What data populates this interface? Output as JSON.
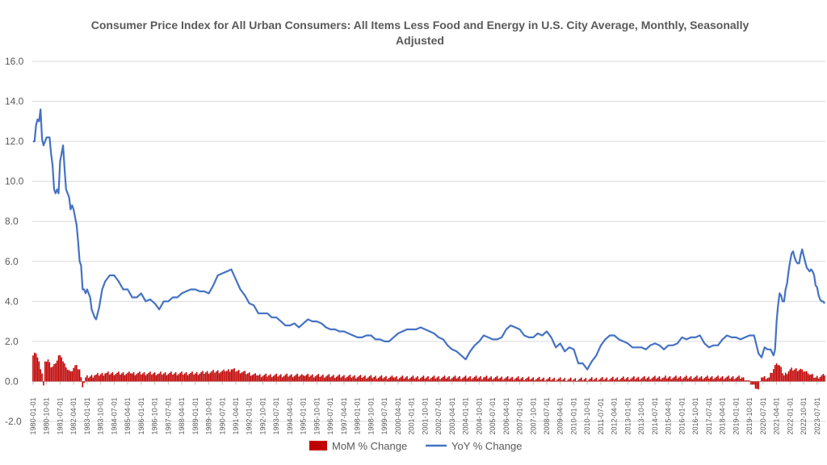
{
  "chart_data": {
    "type": "bar+line",
    "title": "Consumer Price Index for All Urban Consumers: All Items Less Food and Energy in U.S. City Average, Monthly, Seasonally Adjusted",
    "ylim": [
      -2.0,
      16.0
    ],
    "y_ticks": [
      "-2.0",
      "0.0",
      "2.0",
      "4.0",
      "6.0",
      "8.0",
      "10.0",
      "12.0",
      "14.0",
      "16.0"
    ],
    "x_ticks": [
      "1980-01-01",
      "1980-10-01",
      "1981-07-01",
      "1982-04-01",
      "1983-01-01",
      "1983-10-01",
      "1984-07-01",
      "1985-04-01",
      "1986-01-01",
      "1986-10-01",
      "1987-07-01",
      "1988-04-01",
      "1989-01-01",
      "1989-10-01",
      "1990-07-01",
      "1991-04-01",
      "1992-01-01",
      "1992-10-01",
      "1993-07-01",
      "1994-04-01",
      "1995-01-01",
      "1995-10-01",
      "1996-07-01",
      "1997-04-01",
      "1998-01-01",
      "1998-10-01",
      "1999-07-01",
      "2000-04-01",
      "2001-01-01",
      "2001-10-01",
      "2002-07-01",
      "2003-04-01",
      "2004-01-01",
      "2004-10-01",
      "2005-07-01",
      "2006-04-01",
      "2007-01-01",
      "2007-10-01",
      "2008-07-01",
      "2009-04-01",
      "2010-01-01",
      "2010-10-01",
      "2011-07-01",
      "2012-04-01",
      "2013-01-01",
      "2013-10-01",
      "2014-07-01",
      "2015-04-01",
      "2016-01-01",
      "2016-10-01",
      "2017-07-01",
      "2018-04-01",
      "2019-01-01",
      "2019-10-01",
      "2020-07-01",
      "2021-04-01",
      "2022-01-01",
      "2022-10-01",
      "2023-07-01"
    ],
    "x_range": [
      "1980-01-01",
      "2023-12-01"
    ],
    "grid": true,
    "legend_position": "bottom",
    "series": [
      {
        "name": "MoM % Change",
        "type": "bar",
        "color": "#C00000",
        "points": [
          [
            "1980-01",
            1.3
          ],
          [
            "1980-03",
            1.4
          ],
          [
            "1980-05",
            1.0
          ],
          [
            "1980-07",
            0.4
          ],
          [
            "1980-08",
            -0.2
          ],
          [
            "1980-09",
            1.0
          ],
          [
            "1980-11",
            1.1
          ],
          [
            "1981-01",
            0.7
          ],
          [
            "1981-04",
            0.9
          ],
          [
            "1981-06",
            1.3
          ],
          [
            "1981-08",
            1.2
          ],
          [
            "1981-11",
            0.7
          ],
          [
            "1982-02",
            0.5
          ],
          [
            "1982-05",
            0.8
          ],
          [
            "1982-08",
            0.6
          ],
          [
            "1982-10",
            -0.3
          ],
          [
            "1982-12",
            0.2
          ],
          [
            "1983-06",
            0.3
          ],
          [
            "1984-01",
            0.4
          ],
          [
            "1985-06",
            0.4
          ],
          [
            "1987-01",
            0.4
          ],
          [
            "1989-01",
            0.4
          ],
          [
            "1990-03",
            0.5
          ],
          [
            "1990-09",
            0.5
          ],
          [
            "1991-01",
            0.6
          ],
          [
            "1992-06",
            0.3
          ],
          [
            "1995-01",
            0.3
          ],
          [
            "2000-01",
            0.2
          ],
          [
            "2005-01",
            0.2
          ],
          [
            "2010-01",
            0.1
          ],
          [
            "2015-01",
            0.2
          ],
          [
            "2019-06",
            0.2
          ],
          [
            "2020-04",
            -0.4
          ],
          [
            "2020-06",
            0.2
          ],
          [
            "2020-11",
            0.2
          ],
          [
            "2021-04",
            0.9
          ],
          [
            "2021-06",
            0.8
          ],
          [
            "2021-09",
            0.3
          ],
          [
            "2022-01",
            0.6
          ],
          [
            "2022-04",
            0.6
          ],
          [
            "2022-09",
            0.6
          ],
          [
            "2023-01",
            0.4
          ],
          [
            "2023-06",
            0.2
          ],
          [
            "2023-12",
            0.3
          ]
        ]
      },
      {
        "name": "YoY % Change",
        "type": "line",
        "color": "#4472C4",
        "points": [
          [
            "1980-01",
            12.0
          ],
          [
            "1980-02",
            12.0
          ],
          [
            "1980-03",
            12.8
          ],
          [
            "1980-04",
            13.1
          ],
          [
            "1980-05",
            13.0
          ],
          [
            "1980-06",
            13.6
          ],
          [
            "1980-07",
            12.1
          ],
          [
            "1980-08",
            11.8
          ],
          [
            "1980-09",
            12.0
          ],
          [
            "1980-10",
            12.2
          ],
          [
            "1980-11",
            12.2
          ],
          [
            "1980-12",
            12.2
          ],
          [
            "1981-01",
            11.4
          ],
          [
            "1981-02",
            10.8
          ],
          [
            "1981-03",
            9.6
          ],
          [
            "1981-04",
            9.4
          ],
          [
            "1981-05",
            9.6
          ],
          [
            "1981-06",
            9.4
          ],
          [
            "1981-07",
            11.0
          ],
          [
            "1981-08",
            11.4
          ],
          [
            "1981-09",
            11.8
          ],
          [
            "1981-10",
            10.6
          ],
          [
            "1981-11",
            9.6
          ],
          [
            "1981-12",
            9.4
          ],
          [
            "1982-01",
            9.2
          ],
          [
            "1982-02",
            8.6
          ],
          [
            "1982-03",
            8.8
          ],
          [
            "1982-04",
            8.6
          ],
          [
            "1982-05",
            8.2
          ],
          [
            "1982-06",
            7.8
          ],
          [
            "1982-07",
            7.0
          ],
          [
            "1982-08",
            6.0
          ],
          [
            "1982-09",
            5.8
          ],
          [
            "1982-10",
            4.6
          ],
          [
            "1982-11",
            4.6
          ],
          [
            "1982-12",
            4.4
          ],
          [
            "1983-01",
            4.6
          ],
          [
            "1983-03",
            4.2
          ],
          [
            "1983-04",
            3.6
          ],
          [
            "1983-06",
            3.2
          ],
          [
            "1983-07",
            3.1
          ],
          [
            "1983-09",
            3.7
          ],
          [
            "1983-11",
            4.6
          ],
          [
            "1984-01",
            5.0
          ],
          [
            "1984-04",
            5.3
          ],
          [
            "1984-07",
            5.3
          ],
          [
            "1984-10",
            5.0
          ],
          [
            "1985-01",
            4.6
          ],
          [
            "1985-04",
            4.6
          ],
          [
            "1985-07",
            4.2
          ],
          [
            "1985-10",
            4.2
          ],
          [
            "1986-01",
            4.4
          ],
          [
            "1986-04",
            4.0
          ],
          [
            "1986-07",
            4.1
          ],
          [
            "1986-10",
            3.9
          ],
          [
            "1987-01",
            3.6
          ],
          [
            "1987-04",
            4.0
          ],
          [
            "1987-07",
            4.0
          ],
          [
            "1987-10",
            4.2
          ],
          [
            "1988-01",
            4.2
          ],
          [
            "1988-04",
            4.4
          ],
          [
            "1988-07",
            4.5
          ],
          [
            "1988-10",
            4.6
          ],
          [
            "1989-01",
            4.6
          ],
          [
            "1989-04",
            4.5
          ],
          [
            "1989-07",
            4.5
          ],
          [
            "1989-10",
            4.4
          ],
          [
            "1990-01",
            4.8
          ],
          [
            "1990-04",
            5.3
          ],
          [
            "1990-07",
            5.4
          ],
          [
            "1990-10",
            5.5
          ],
          [
            "1991-01",
            5.6
          ],
          [
            "1991-04",
            5.1
          ],
          [
            "1991-07",
            4.6
          ],
          [
            "1991-10",
            4.3
          ],
          [
            "1992-01",
            3.9
          ],
          [
            "1992-04",
            3.8
          ],
          [
            "1992-07",
            3.4
          ],
          [
            "1992-10",
            3.4
          ],
          [
            "1993-01",
            3.4
          ],
          [
            "1993-04",
            3.2
          ],
          [
            "1993-07",
            3.2
          ],
          [
            "1993-10",
            3.0
          ],
          [
            "1994-01",
            2.8
          ],
          [
            "1994-04",
            2.8
          ],
          [
            "1994-07",
            2.9
          ],
          [
            "1994-10",
            2.7
          ],
          [
            "1995-01",
            2.9
          ],
          [
            "1995-04",
            3.1
          ],
          [
            "1995-07",
            3.0
          ],
          [
            "1995-10",
            3.0
          ],
          [
            "1996-01",
            2.9
          ],
          [
            "1996-04",
            2.7
          ],
          [
            "1996-07",
            2.6
          ],
          [
            "1996-10",
            2.6
          ],
          [
            "1997-01",
            2.5
          ],
          [
            "1997-04",
            2.5
          ],
          [
            "1997-07",
            2.4
          ],
          [
            "1997-10",
            2.3
          ],
          [
            "1998-01",
            2.2
          ],
          [
            "1998-04",
            2.2
          ],
          [
            "1998-07",
            2.3
          ],
          [
            "1998-10",
            2.3
          ],
          [
            "1999-01",
            2.1
          ],
          [
            "1999-04",
            2.1
          ],
          [
            "1999-07",
            2.0
          ],
          [
            "1999-10",
            2.0
          ],
          [
            "2000-01",
            2.2
          ],
          [
            "2000-04",
            2.4
          ],
          [
            "2000-07",
            2.5
          ],
          [
            "2000-10",
            2.6
          ],
          [
            "2001-01",
            2.6
          ],
          [
            "2001-04",
            2.6
          ],
          [
            "2001-07",
            2.7
          ],
          [
            "2001-10",
            2.6
          ],
          [
            "2002-01",
            2.5
          ],
          [
            "2002-04",
            2.4
          ],
          [
            "2002-07",
            2.2
          ],
          [
            "2002-10",
            2.1
          ],
          [
            "2003-01",
            1.8
          ],
          [
            "2003-04",
            1.6
          ],
          [
            "2003-07",
            1.5
          ],
          [
            "2003-10",
            1.3
          ],
          [
            "2004-01",
            1.1
          ],
          [
            "2004-04",
            1.5
          ],
          [
            "2004-07",
            1.8
          ],
          [
            "2004-10",
            2.0
          ],
          [
            "2005-01",
            2.3
          ],
          [
            "2005-04",
            2.2
          ],
          [
            "2005-07",
            2.1
          ],
          [
            "2005-10",
            2.1
          ],
          [
            "2006-01",
            2.2
          ],
          [
            "2006-04",
            2.6
          ],
          [
            "2006-07",
            2.8
          ],
          [
            "2006-10",
            2.7
          ],
          [
            "2007-01",
            2.6
          ],
          [
            "2007-04",
            2.3
          ],
          [
            "2007-07",
            2.2
          ],
          [
            "2007-10",
            2.2
          ],
          [
            "2008-01",
            2.4
          ],
          [
            "2008-04",
            2.3
          ],
          [
            "2008-07",
            2.5
          ],
          [
            "2008-10",
            2.2
          ],
          [
            "2009-01",
            1.7
          ],
          [
            "2009-04",
            1.9
          ],
          [
            "2009-07",
            1.5
          ],
          [
            "2009-10",
            1.7
          ],
          [
            "2010-01",
            1.6
          ],
          [
            "2010-04",
            0.9
          ],
          [
            "2010-07",
            0.9
          ],
          [
            "2010-10",
            0.6
          ],
          [
            "2011-01",
            1.0
          ],
          [
            "2011-04",
            1.3
          ],
          [
            "2011-07",
            1.8
          ],
          [
            "2011-10",
            2.1
          ],
          [
            "2012-01",
            2.3
          ],
          [
            "2012-04",
            2.3
          ],
          [
            "2012-07",
            2.1
          ],
          [
            "2012-10",
            2.0
          ],
          [
            "2013-01",
            1.9
          ],
          [
            "2013-04",
            1.7
          ],
          [
            "2013-07",
            1.7
          ],
          [
            "2013-10",
            1.7
          ],
          [
            "2014-01",
            1.6
          ],
          [
            "2014-04",
            1.8
          ],
          [
            "2014-07",
            1.9
          ],
          [
            "2014-10",
            1.8
          ],
          [
            "2015-01",
            1.6
          ],
          [
            "2015-04",
            1.8
          ],
          [
            "2015-07",
            1.8
          ],
          [
            "2015-10",
            1.9
          ],
          [
            "2016-01",
            2.2
          ],
          [
            "2016-04",
            2.1
          ],
          [
            "2016-07",
            2.2
          ],
          [
            "2016-10",
            2.2
          ],
          [
            "2017-01",
            2.3
          ],
          [
            "2017-04",
            1.9
          ],
          [
            "2017-07",
            1.7
          ],
          [
            "2017-10",
            1.8
          ],
          [
            "2018-01",
            1.8
          ],
          [
            "2018-04",
            2.1
          ],
          [
            "2018-07",
            2.3
          ],
          [
            "2018-10",
            2.2
          ],
          [
            "2019-01",
            2.2
          ],
          [
            "2019-04",
            2.1
          ],
          [
            "2019-07",
            2.2
          ],
          [
            "2019-10",
            2.3
          ],
          [
            "2020-01",
            2.3
          ],
          [
            "2020-04",
            1.4
          ],
          [
            "2020-06",
            1.2
          ],
          [
            "2020-08",
            1.7
          ],
          [
            "2020-10",
            1.6
          ],
          [
            "2020-12",
            1.6
          ],
          [
            "2021-02",
            1.3
          ],
          [
            "2021-03",
            1.6
          ],
          [
            "2021-04",
            3.0
          ],
          [
            "2021-05",
            3.8
          ],
          [
            "2021-06",
            4.4
          ],
          [
            "2021-07",
            4.3
          ],
          [
            "2021-08",
            4.0
          ],
          [
            "2021-09",
            4.0
          ],
          [
            "2021-10",
            4.6
          ],
          [
            "2021-11",
            4.9
          ],
          [
            "2021-12",
            5.5
          ],
          [
            "2022-01",
            6.0
          ],
          [
            "2022-02",
            6.4
          ],
          [
            "2022-03",
            6.5
          ],
          [
            "2022-04",
            6.2
          ],
          [
            "2022-05",
            6.0
          ],
          [
            "2022-06",
            5.9
          ],
          [
            "2022-07",
            5.9
          ],
          [
            "2022-08",
            6.3
          ],
          [
            "2022-09",
            6.6
          ],
          [
            "2022-10",
            6.3
          ],
          [
            "2022-11",
            6.0
          ],
          [
            "2022-12",
            5.7
          ],
          [
            "2023-01",
            5.6
          ],
          [
            "2023-02",
            5.5
          ],
          [
            "2023-03",
            5.6
          ],
          [
            "2023-04",
            5.5
          ],
          [
            "2023-05",
            5.3
          ],
          [
            "2023-06",
            4.8
          ],
          [
            "2023-07",
            4.7
          ],
          [
            "2023-08",
            4.3
          ],
          [
            "2023-09",
            4.1
          ],
          [
            "2023-10",
            4.0
          ],
          [
            "2023-11",
            4.0
          ],
          [
            "2023-12",
            3.9
          ]
        ]
      }
    ]
  }
}
